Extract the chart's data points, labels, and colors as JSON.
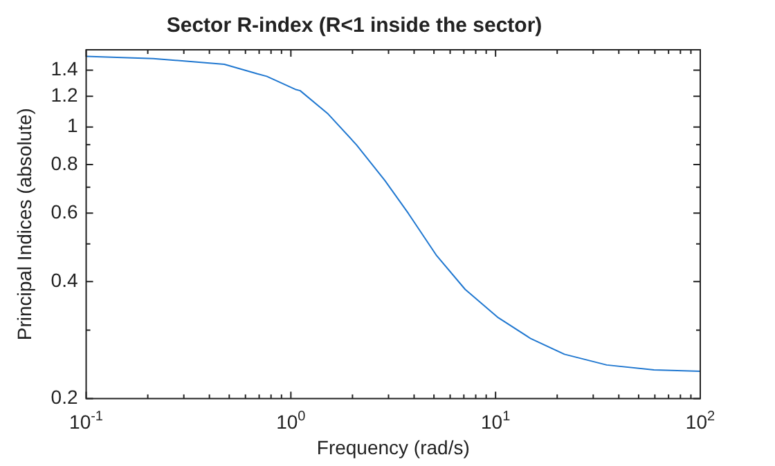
{
  "chart_data": {
    "type": "line",
    "title": "Sector R-index (R<1 inside the sector)",
    "xlabel": "Frequency (rad/s)",
    "ylabel": "Principal Indices (absolute)",
    "log": "xy",
    "grid": false,
    "marker": "none",
    "line_style": "solid",
    "xlim": [
      0.1,
      100
    ],
    "ylim": [
      0.2,
      1.58
    ],
    "xticks": [
      {
        "value": 0.1,
        "label": "10$^{-1}$"
      },
      {
        "value": 0.2,
        "label": null
      },
      {
        "value": 0.3,
        "label": null
      },
      {
        "value": 0.4,
        "label": null
      },
      {
        "value": 0.5,
        "label": null
      },
      {
        "value": 0.6,
        "label": null
      },
      {
        "value": 0.7,
        "label": null
      },
      {
        "value": 0.8,
        "label": null
      },
      {
        "value": 0.9,
        "label": null
      },
      {
        "value": 1,
        "label": "10$^{0}$"
      },
      {
        "value": 2,
        "label": null
      },
      {
        "value": 3,
        "label": null
      },
      {
        "value": 4,
        "label": null
      },
      {
        "value": 5,
        "label": null
      },
      {
        "value": 6,
        "label": null
      },
      {
        "value": 7,
        "label": null
      },
      {
        "value": 8,
        "label": null
      },
      {
        "value": 9,
        "label": null
      },
      {
        "value": 10,
        "label": "10$^{1}$"
      },
      {
        "value": 20,
        "label": null
      },
      {
        "value": 30,
        "label": null
      },
      {
        "value": 40,
        "label": null
      },
      {
        "value": 50,
        "label": null
      },
      {
        "value": 60,
        "label": null
      },
      {
        "value": 70,
        "label": null
      },
      {
        "value": 80,
        "label": null
      },
      {
        "value": 90,
        "label": null
      },
      {
        "value": 100,
        "label": "10$^{2}$"
      }
    ],
    "yticks": [
      0.2,
      {
        "value": 0.3,
        "label": null
      },
      0.4,
      {
        "value": 0.5,
        "label": null
      },
      0.6,
      {
        "value": 0.7,
        "label": null
      },
      0.8,
      {
        "value": 0.9,
        "label": null
      },
      1,
      1.2,
      1.4
    ],
    "x": [
      0.1,
      0.213,
      0.473,
      0.686,
      0.762,
      1.05,
      1.11,
      1.52,
      2.09,
      2.88,
      3.75,
      5.16,
      7.1,
      10.3,
      14.9,
      21.7,
      34.9,
      59.4,
      100
    ],
    "series": [
      {
        "color": "#1f77d0",
        "values": [
          1.52,
          1.5,
          1.45,
          1.37,
          1.35,
          1.25,
          1.24,
          1.08,
          0.9,
          0.728,
          0.599,
          0.466,
          0.382,
          0.323,
          0.285,
          0.26,
          0.244,
          0.237,
          0.235
        ]
      }
    ]
  }
}
